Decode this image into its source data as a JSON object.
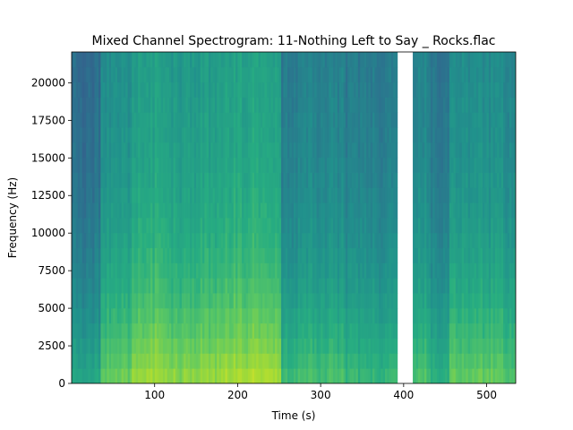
{
  "chart_data": {
    "type": "heatmap",
    "title": "Mixed Channel Spectrogram: 11-Nothing Left to Say _ Rocks.flac",
    "xlabel": "Time (s)",
    "ylabel": "Frequency (Hz)",
    "xlim": [
      0,
      535
    ],
    "ylim": [
      0,
      22050
    ],
    "xticks": [
      100,
      200,
      300,
      400,
      500
    ],
    "xtick_labels": [
      "100",
      "200",
      "300",
      "400",
      "500"
    ],
    "yticks": [
      0,
      2500,
      5000,
      7500,
      10000,
      12500,
      15000,
      17500,
      20000
    ],
    "ytick_labels": [
      "0",
      "2500",
      "5000",
      "7500",
      "10000",
      "12500",
      "15000",
      "17500",
      "20000"
    ],
    "colormap": "viridis",
    "grid": false,
    "gap": {
      "start_s": 393,
      "end_s": 411
    },
    "segments": [
      {
        "start_s": 0,
        "end_s": 36,
        "intensity": 0.12
      },
      {
        "start_s": 36,
        "end_s": 72,
        "intensity": 0.45
      },
      {
        "start_s": 72,
        "end_s": 108,
        "intensity": 0.62
      },
      {
        "start_s": 108,
        "end_s": 145,
        "intensity": 0.55
      },
      {
        "start_s": 145,
        "end_s": 180,
        "intensity": 0.58
      },
      {
        "start_s": 180,
        "end_s": 252,
        "intensity": 0.65
      },
      {
        "start_s": 252,
        "end_s": 272,
        "intensity": 0.25
      },
      {
        "start_s": 272,
        "end_s": 330,
        "intensity": 0.33
      },
      {
        "start_s": 330,
        "end_s": 393,
        "intensity": 0.25
      },
      {
        "start_s": 411,
        "end_s": 433,
        "intensity": 0.35
      },
      {
        "start_s": 433,
        "end_s": 455,
        "intensity": 0.22
      },
      {
        "start_s": 455,
        "end_s": 470,
        "intensity": 0.45
      },
      {
        "start_s": 470,
        "end_s": 520,
        "intensity": 0.42
      },
      {
        "start_s": 520,
        "end_s": 535,
        "intensity": 0.38
      }
    ]
  }
}
